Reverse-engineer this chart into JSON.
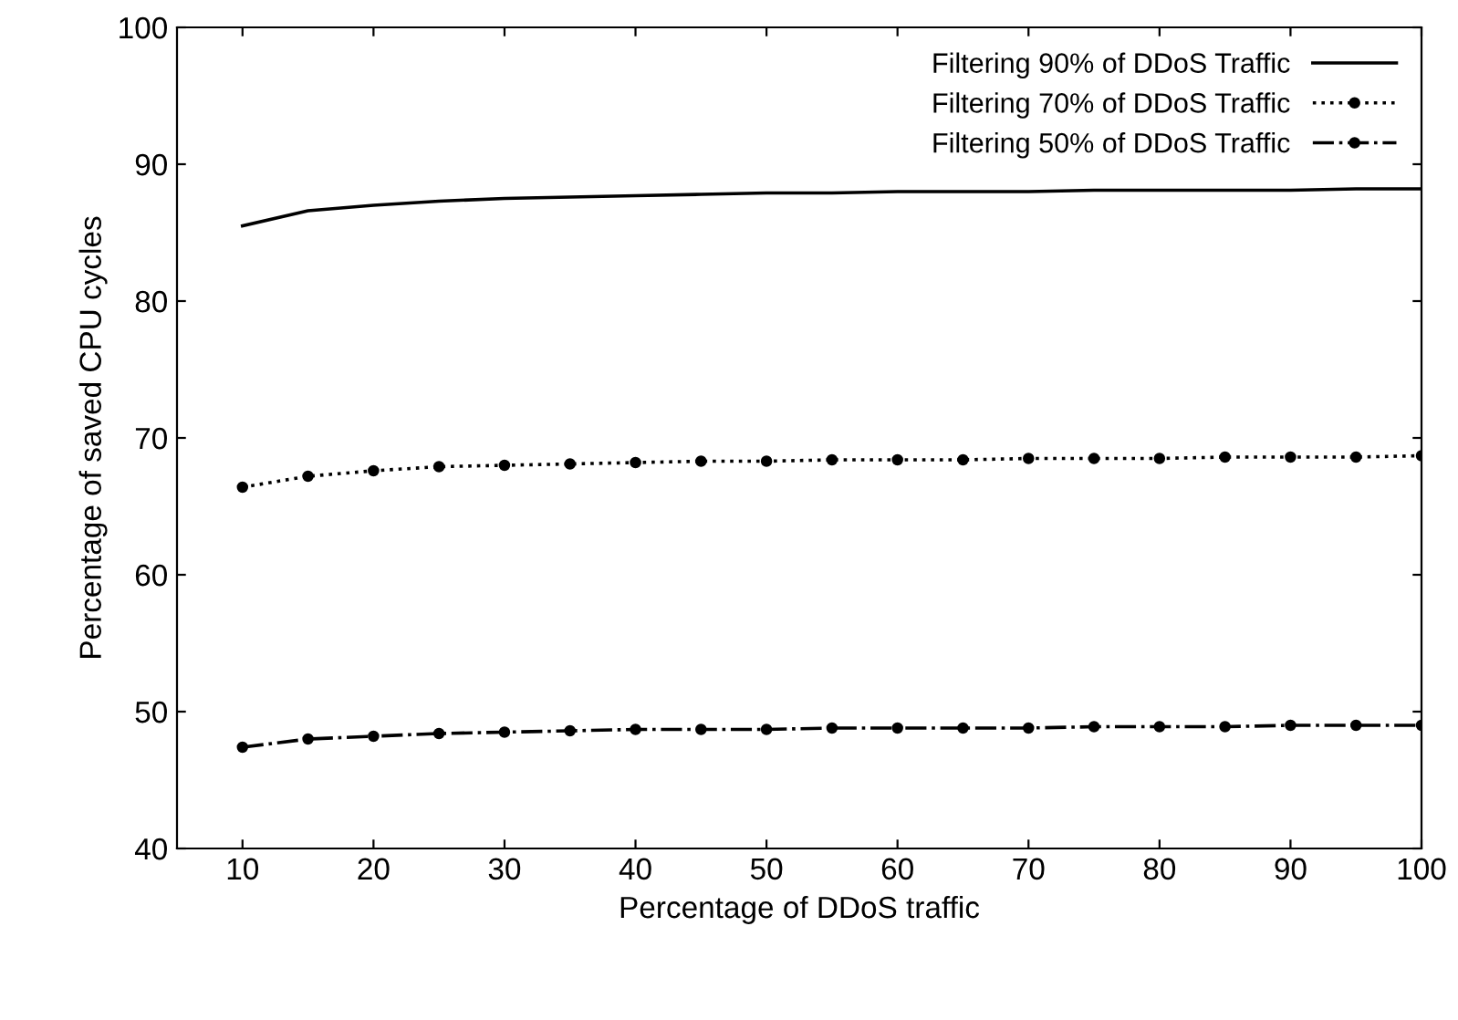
{
  "chart_data": {
    "type": "line",
    "xlabel": "Percentage of DDoS traffic",
    "ylabel": "Percentage of saved CPU cycles",
    "x": [
      10,
      15,
      20,
      25,
      30,
      35,
      40,
      45,
      50,
      55,
      60,
      65,
      70,
      75,
      80,
      85,
      90,
      95,
      100
    ],
    "xlim": [
      5,
      100
    ],
    "xticks": [
      10,
      20,
      30,
      40,
      50,
      60,
      70,
      80,
      90,
      100
    ],
    "ylim": [
      40,
      100
    ],
    "yticks": [
      40,
      50,
      60,
      70,
      80,
      90,
      100
    ],
    "grid": false,
    "legend": "top right",
    "series": [
      {
        "name": "Filtering 90% of DDoS Traffic",
        "color": "#000000",
        "line_style": "solid",
        "marker": "none",
        "values": [
          85.5,
          86.6,
          87.0,
          87.3,
          87.5,
          87.6,
          87.7,
          87.8,
          87.9,
          87.9,
          88.0,
          88.0,
          88.0,
          88.1,
          88.1,
          88.1,
          88.1,
          88.2,
          88.2
        ]
      },
      {
        "name": "Filtering 70% of DDoS Traffic",
        "color": "#000000",
        "line_style": "dotted",
        "marker": "circle",
        "values": [
          66.4,
          67.2,
          67.6,
          67.9,
          68.0,
          68.1,
          68.2,
          68.3,
          68.3,
          68.4,
          68.4,
          68.4,
          68.5,
          68.5,
          68.5,
          68.6,
          68.6,
          68.6,
          68.7
        ]
      },
      {
        "name": "Filtering 50% of DDoS Traffic",
        "color": "#000000",
        "line_style": "dashdot",
        "marker": "circle",
        "values": [
          47.4,
          48.0,
          48.2,
          48.4,
          48.5,
          48.6,
          48.7,
          48.7,
          48.7,
          48.8,
          48.8,
          48.8,
          48.8,
          48.9,
          48.9,
          48.9,
          49.0,
          49.0,
          49.0
        ]
      }
    ]
  }
}
